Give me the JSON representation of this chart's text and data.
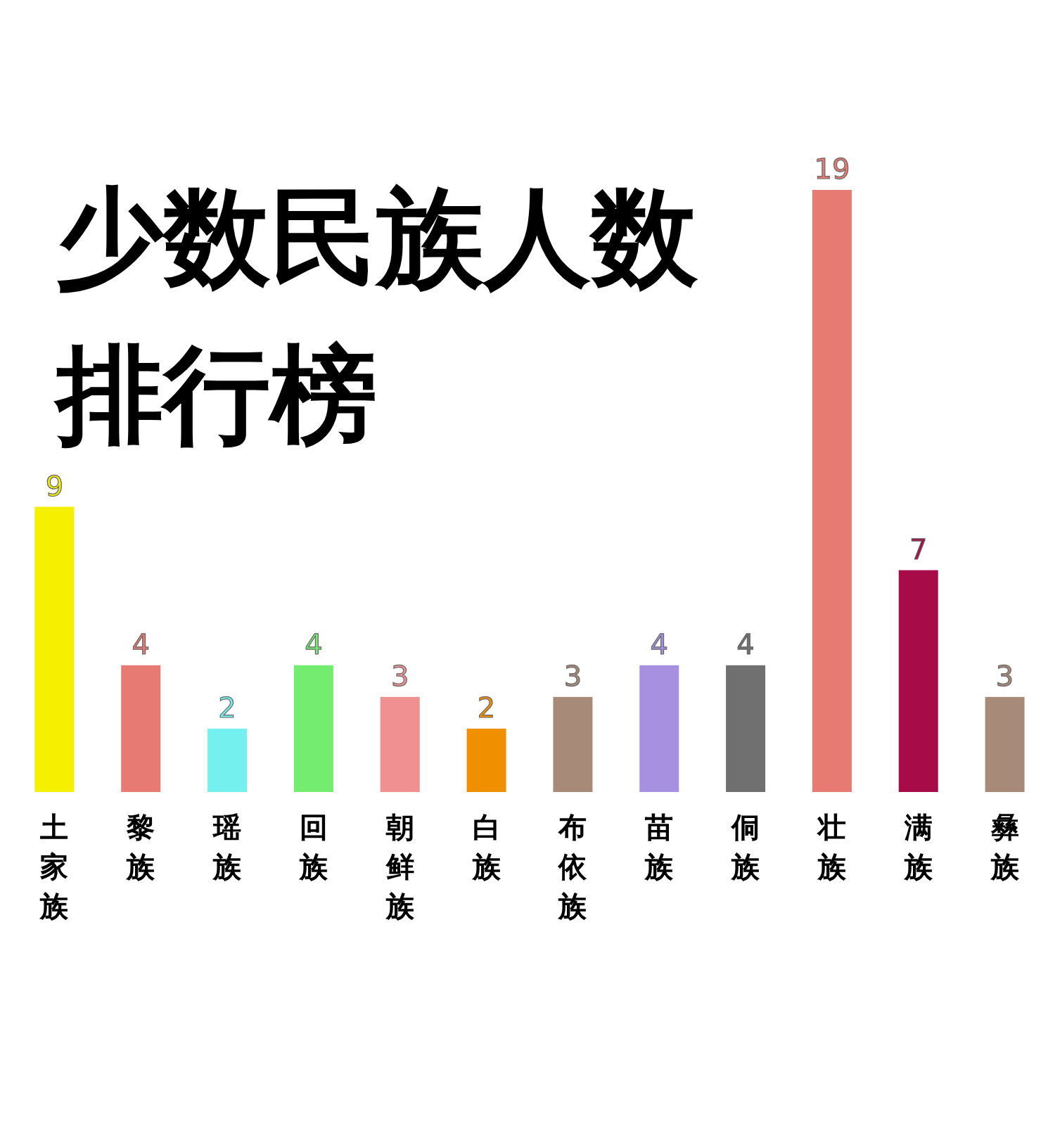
{
  "chart_data": {
    "type": "bar",
    "title": "少数民族人数排行榜",
    "categories": [
      "土家族",
      "黎族",
      "瑶族",
      "回族",
      "朝鲜族",
      "白族",
      "布依族",
      "苗族",
      "侗族",
      "壮族",
      "满族",
      "彝族"
    ],
    "values": [
      9,
      4,
      2,
      4,
      3,
      2,
      3,
      4,
      4,
      19,
      7,
      3
    ],
    "colors": [
      "#f5f000",
      "#e87a74",
      "#74f0ee",
      "#74ec70",
      "#f09090",
      "#f09000",
      "#a88a78",
      "#a890e0",
      "#707070",
      "#e87a74",
      "#a80c48",
      "#a88a78"
    ],
    "data_labels": true
  }
}
